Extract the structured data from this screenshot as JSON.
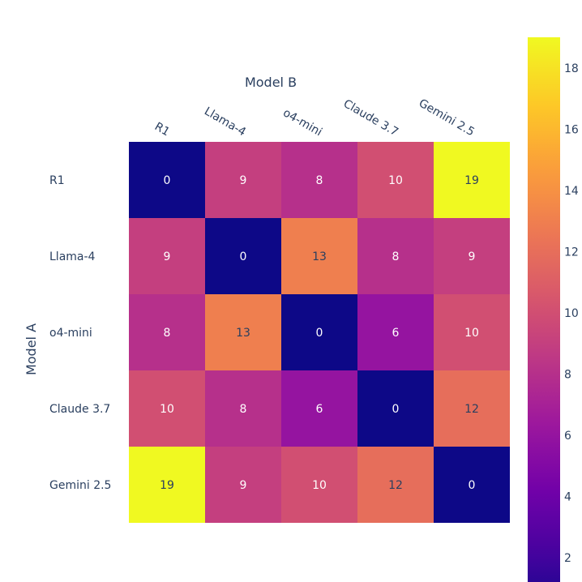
{
  "chart_data": {
    "type": "heatmap",
    "xlabel": "Model B",
    "ylabel": "Model A",
    "x_categories": [
      "R1",
      "Llama-4",
      "o4-mini",
      "Claude 3.7",
      "Gemini 2.5"
    ],
    "y_categories": [
      "R1",
      "Llama-4",
      "o4-mini",
      "Claude 3.7",
      "Gemini 2.5"
    ],
    "z": [
      [
        0,
        9,
        8,
        10,
        19
      ],
      [
        9,
        0,
        13,
        8,
        9
      ],
      [
        8,
        13,
        0,
        6,
        10
      ],
      [
        10,
        8,
        6,
        0,
        12
      ],
      [
        19,
        9,
        10,
        12,
        0
      ]
    ],
    "colorscale": "plasma",
    "colorbar": {
      "ticks": [
        2,
        4,
        6,
        8,
        10,
        12,
        14,
        16,
        18
      ],
      "range": [
        1.2,
        19
      ]
    },
    "colors": {
      "plasma": [
        "#0d0887",
        "#46039f",
        "#7201a8",
        "#9c179e",
        "#bd3786",
        "#d8576b",
        "#ed7953",
        "#fb9f3a",
        "#fdca26",
        "#f0f921"
      ],
      "text": "#2a3f5f"
    }
  }
}
